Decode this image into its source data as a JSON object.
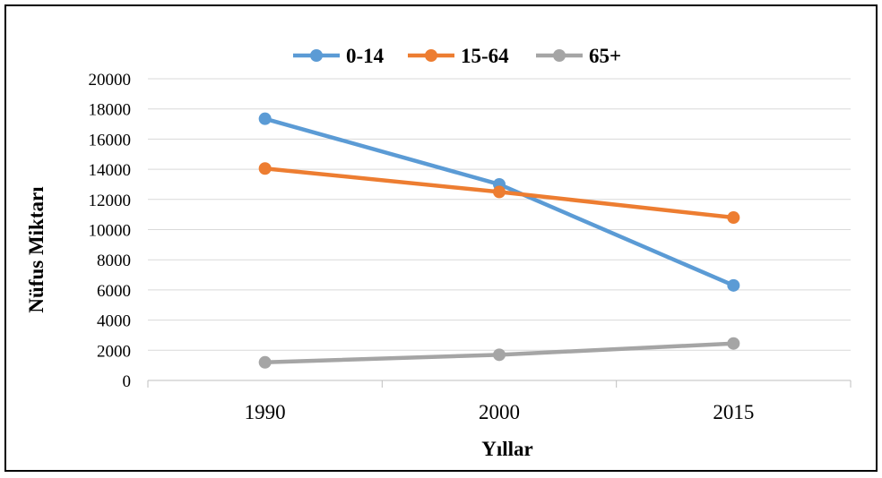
{
  "chart_data": {
    "type": "line",
    "categories": [
      "1990",
      "2000",
      "2015"
    ],
    "series": [
      {
        "name": "0-14",
        "values": [
          17350,
          13000,
          6300
        ],
        "color": "#5b9bd5"
      },
      {
        "name": "15-64",
        "values": [
          14050,
          12500,
          10800
        ],
        "color": "#ed7d31"
      },
      {
        "name": "65+",
        "values": [
          1200,
          1700,
          2450
        ],
        "color": "#a5a5a5"
      }
    ],
    "xlabel": "Yıllar",
    "ylabel": "Nüfus Miktarı",
    "ylim": [
      0,
      20000
    ],
    "yticks": [
      "0",
      "2000",
      "4000",
      "6000",
      "8000",
      "10000",
      "12000",
      "14000",
      "16000",
      "18000",
      "20000"
    ],
    "grid": true,
    "legend_position": "top"
  }
}
